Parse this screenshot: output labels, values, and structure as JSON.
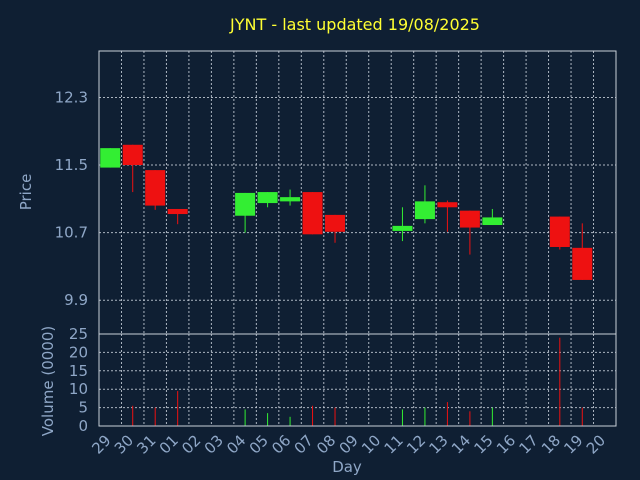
{
  "chart_data": [
    {
      "type": "candlestick",
      "title": "JYNT - last updated 19/08/2025",
      "ylabel": "Price",
      "ylim": [
        9.5,
        12.85
      ],
      "yticks": [
        "9.9",
        "10.7",
        "11.5",
        "12.3"
      ],
      "ytick_values": [
        9.9,
        10.7,
        11.5,
        12.3
      ],
      "grid": true,
      "up_color": "#33ee33",
      "down_color": "#ee1111",
      "candles": [
        {
          "day": "29",
          "open": 11.47,
          "high": 11.7,
          "low": 11.47,
          "close": 11.7
        },
        {
          "day": "30",
          "open": 11.74,
          "high": 11.74,
          "low": 11.18,
          "close": 11.5
        },
        {
          "day": "31",
          "open": 11.44,
          "high": 11.44,
          "low": 10.97,
          "close": 11.02
        },
        {
          "day": "01",
          "open": 10.98,
          "high": 10.98,
          "low": 10.8,
          "close": 10.92
        },
        {
          "day": "04",
          "open": 10.9,
          "high": 11.17,
          "low": 10.7,
          "close": 11.17
        },
        {
          "day": "05",
          "open": 11.05,
          "high": 11.18,
          "low": 11.0,
          "close": 11.18
        },
        {
          "day": "06",
          "open": 11.07,
          "high": 11.21,
          "low": 11.02,
          "close": 11.12
        },
        {
          "day": "07",
          "open": 11.18,
          "high": 11.18,
          "low": 10.68,
          "close": 10.68
        },
        {
          "day": "08",
          "open": 10.91,
          "high": 10.91,
          "low": 10.58,
          "close": 10.71
        },
        {
          "day": "11",
          "open": 10.72,
          "high": 11.0,
          "low": 10.6,
          "close": 10.78
        },
        {
          "day": "12",
          "open": 10.86,
          "high": 11.26,
          "low": 10.81,
          "close": 11.07
        },
        {
          "day": "13",
          "open": 11.06,
          "high": 11.08,
          "low": 10.71,
          "close": 11.0
        },
        {
          "day": "14",
          "open": 10.96,
          "high": 10.96,
          "low": 10.44,
          "close": 10.76
        },
        {
          "day": "15",
          "open": 10.79,
          "high": 10.98,
          "low": 10.79,
          "close": 10.88
        },
        {
          "day": "18",
          "open": 10.89,
          "high": 10.89,
          "low": 10.5,
          "close": 10.53
        },
        {
          "day": "19",
          "open": 10.52,
          "high": 10.81,
          "low": 10.14,
          "close": 10.14
        }
      ]
    },
    {
      "type": "bar",
      "ylabel": "Volume (0000)",
      "xlabel": "Day",
      "ylim": [
        0,
        25
      ],
      "yticks": [
        "0",
        "5",
        "10",
        "15",
        "20",
        "25"
      ],
      "ytick_values": [
        0,
        5,
        10,
        15,
        20,
        25
      ],
      "categories": [
        "29",
        "30",
        "31",
        "01",
        "02",
        "03",
        "04",
        "05",
        "06",
        "07",
        "08",
        "09",
        "10",
        "11",
        "12",
        "13",
        "14",
        "15",
        "16",
        "17",
        "18",
        "19",
        "20"
      ],
      "volumes": [
        {
          "day": "30",
          "value": 5.5,
          "direction": "down"
        },
        {
          "day": "31",
          "value": 5.0,
          "direction": "down"
        },
        {
          "day": "01",
          "value": 9.5,
          "direction": "down"
        },
        {
          "day": "04",
          "value": 4.5,
          "direction": "up"
        },
        {
          "day": "05",
          "value": 3.5,
          "direction": "up"
        },
        {
          "day": "06",
          "value": 2.5,
          "direction": "up"
        },
        {
          "day": "07",
          "value": 5.5,
          "direction": "down"
        },
        {
          "day": "08",
          "value": 5.0,
          "direction": "down"
        },
        {
          "day": "11",
          "value": 4.5,
          "direction": "up"
        },
        {
          "day": "12",
          "value": 5.0,
          "direction": "up"
        },
        {
          "day": "13",
          "value": 6.5,
          "direction": "down"
        },
        {
          "day": "14",
          "value": 4.0,
          "direction": "down"
        },
        {
          "day": "15",
          "value": 5.0,
          "direction": "up"
        },
        {
          "day": "18",
          "value": 24.0,
          "direction": "down"
        },
        {
          "day": "19",
          "value": 5.0,
          "direction": "down"
        }
      ]
    }
  ]
}
